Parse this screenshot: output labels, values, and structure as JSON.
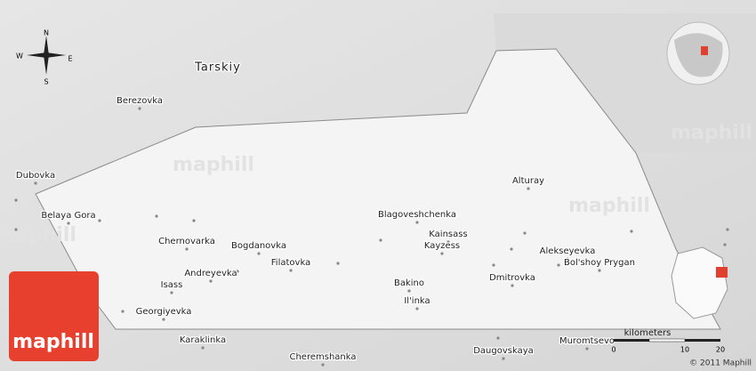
{
  "compass": {
    "north": "N",
    "south": "S",
    "west": "W",
    "east": "E"
  },
  "region_label": "Tarskiy",
  "places": [
    "Berezovka",
    "Dubovka",
    "Belaya Gora",
    "Chernovarka",
    "Bogdanovka",
    "Filatovka",
    "Andreyevka",
    "Isass",
    "Georgiyevka",
    "Karaklinka",
    "Cheremshanka",
    "Blagoveshchenka",
    "Kainsass",
    "Kayzess",
    "Alturay",
    "Alekseyevka",
    "Bol'shoy Prygan",
    "Dmitrovka",
    "Bakino",
    "Il'inka",
    "Daugovskaya",
    "Muromtsevo"
  ],
  "scale": {
    "unit": "kilometers",
    "ticks": [
      "0",
      "10",
      "20"
    ]
  },
  "logo": "maphill",
  "copyright": "© 2011 Maphill",
  "watermarks": [
    "maphill",
    "maphill",
    "maphill",
    "maphill"
  ]
}
